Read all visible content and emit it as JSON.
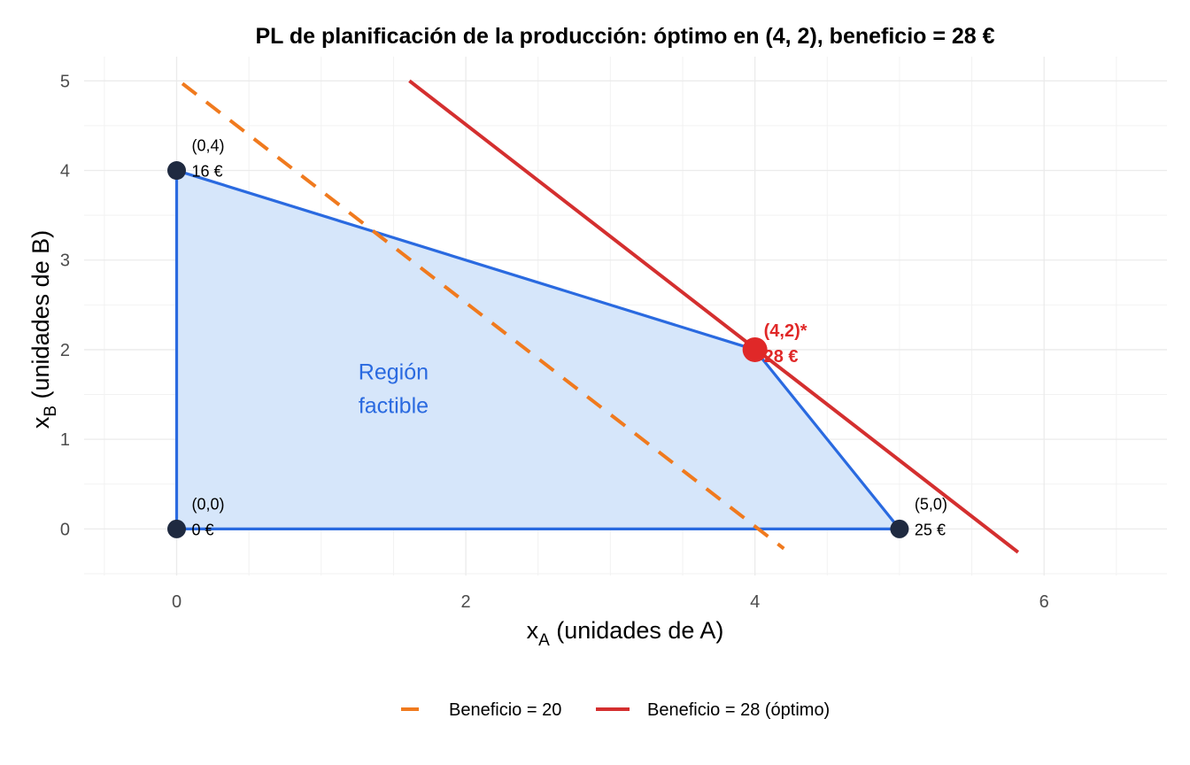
{
  "chart_data": {
    "type": "line",
    "title": "PL de planificación de la producción: óptimo en (4, 2), beneficio = 28 €",
    "xlabel": {
      "main": "x",
      "sub": "A",
      "rest": " (unidades de A)"
    },
    "ylabel": {
      "main": "x",
      "sub": "B",
      "rest": " (unidades de B)"
    },
    "xlim": [
      -0.64,
      6.85
    ],
    "ylim": [
      -0.52,
      5.27
    ],
    "xticks": [
      0,
      2,
      4,
      6
    ],
    "yticks": [
      0,
      1,
      2,
      3,
      4,
      5
    ],
    "grid": true,
    "feasible_region": {
      "label_line1": "Región",
      "label_line2": "factible",
      "label_pos": [
        1.5,
        1.5
      ],
      "vertices": [
        [
          0,
          0
        ],
        [
          0,
          4
        ],
        [
          4,
          2
        ],
        [
          5,
          0
        ]
      ],
      "fill_color": "#d6e6fa",
      "edge_color": "#2a6ae0"
    },
    "vertices": [
      {
        "x": 0,
        "y": 0,
        "label": "(0,0)",
        "value": "0 €",
        "optimal": false
      },
      {
        "x": 0,
        "y": 4,
        "label": "(0,4)",
        "value": "16 €",
        "optimal": false
      },
      {
        "x": 5,
        "y": 0,
        "label": "(5,0)",
        "value": "25 €",
        "optimal": false
      },
      {
        "x": 4,
        "y": 2,
        "label": "(4,2)*",
        "value": "28 €",
        "optimal": true
      }
    ],
    "series": [
      {
        "name": "Beneficio = 20",
        "color": "#f07a1e",
        "dash": true,
        "x": [
          0.04,
          4.2
        ],
        "y": [
          4.97,
          -0.22
        ]
      },
      {
        "name": "Beneficio = 28 (óptimo)",
        "color": "#d42f2f",
        "dash": false,
        "x": [
          1.61,
          5.82
        ],
        "y": [
          5.0,
          -0.26
        ]
      }
    ],
    "legend_position": "bottom",
    "colors": {
      "vertex": "#1f2a40",
      "optimal": "#e02828"
    }
  }
}
